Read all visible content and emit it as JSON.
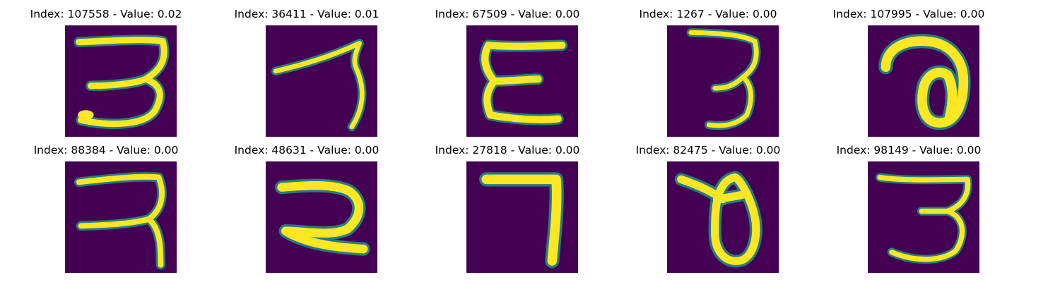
{
  "panels": [
    {
      "title": "Index: 107558 - Value: 0.02",
      "glyph": "three-with-loop"
    },
    {
      "title": "Index: 36411 - Value: 0.01",
      "glyph": "stroke-seven"
    },
    {
      "title": "Index: 67509 - Value: 0.00",
      "glyph": "epsilon"
    },
    {
      "title": "Index: 1267 - Value: 0.00",
      "glyph": "thin-three"
    },
    {
      "title": "Index: 107995 - Value: 0.00",
      "glyph": "curl"
    },
    {
      "title": "Index: 88384 - Value: 0.00",
      "glyph": "three-variant"
    },
    {
      "title": "Index: 48631 - Value: 0.00",
      "glyph": "two-variant"
    },
    {
      "title": "Index: 27818 - Value: 0.00",
      "glyph": "seven"
    },
    {
      "title": "Index: 82475 - Value: 0.00",
      "glyph": "theta"
    },
    {
      "title": "Index: 98149 - Value: 0.00",
      "glyph": "three"
    }
  ],
  "colors": {
    "background": "#440154",
    "stroke": "#fde725",
    "edge": "#21918c"
  }
}
